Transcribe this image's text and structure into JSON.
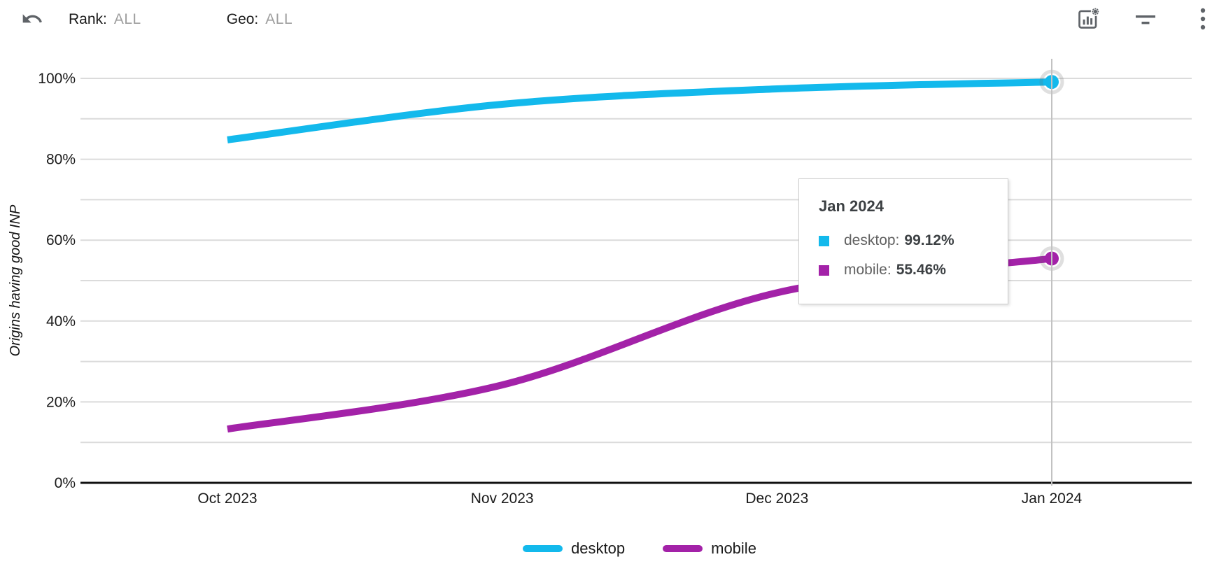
{
  "header": {
    "rank_label": "Rank:",
    "rank_value": "ALL",
    "geo_label": "Geo:",
    "geo_value": "ALL",
    "icons": [
      "undo-icon",
      "chart-settings-icon",
      "filter-icon",
      "kebab-menu-icon"
    ],
    "icon_color": "#5f6368"
  },
  "chart_data": {
    "type": "line",
    "title": "",
    "xlabel": "",
    "ylabel": "Origins having good INP",
    "x": [
      "Oct 2023",
      "Nov 2023",
      "Dec 2023",
      "Jan 2024"
    ],
    "series": [
      {
        "name": "desktop",
        "color": "#13b9ec",
        "values": [
          84.8,
          93.6,
          97.4,
          99.12
        ]
      },
      {
        "name": "mobile",
        "color": "#a322a8",
        "values": [
          13.3,
          24.2,
          47.0,
          55.46
        ]
      }
    ],
    "ylim": [
      0,
      100
    ],
    "y_tick_labels": [
      "0%",
      "20%",
      "40%",
      "60%",
      "80%",
      "100%"
    ],
    "grid_step": 10,
    "grid_on": true,
    "smooth": true,
    "legend_position": "bottom",
    "selected_index": 3,
    "selected_label": "Jan 2024",
    "grid_color": "#dbdbdb",
    "axis_color": "#111111",
    "crosshair_color": "#c2c2c2",
    "label_color": "#1a1a1a"
  },
  "tooltip": {
    "title": "Jan 2024",
    "rows": [
      {
        "label": "desktop:",
        "value": "99.12%",
        "color": "#13b9ec"
      },
      {
        "label": "mobile:",
        "value": "55.46%",
        "color": "#a322a8"
      }
    ]
  },
  "legend": {
    "items": [
      {
        "label": "desktop",
        "color": "#13b9ec"
      },
      {
        "label": "mobile",
        "color": "#a322a8"
      }
    ]
  }
}
